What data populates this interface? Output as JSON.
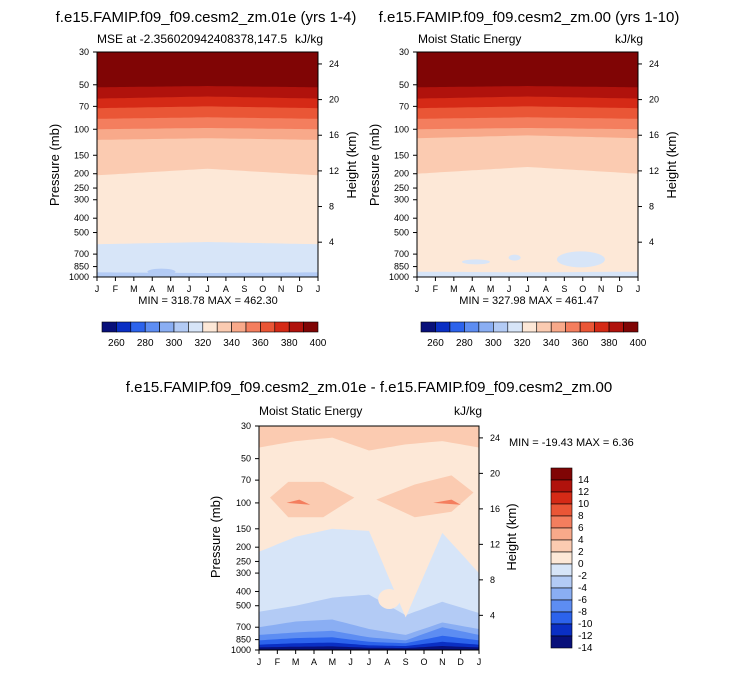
{
  "colors": {
    "diverging": [
      "#08107a",
      "#0a2fc4",
      "#2c63ec",
      "#5d8df2",
      "#8aaef3",
      "#b3cbf5",
      "#d7e5f8",
      "#fde8d7",
      "#fbcbb1",
      "#f8a98a",
      "#f47e5e",
      "#ea5636",
      "#d52a16",
      "#b0120c",
      "#800505"
    ],
    "frame": "#000000"
  },
  "months": [
    "J",
    "F",
    "M",
    "A",
    "M",
    "J",
    "J",
    "A",
    "S",
    "O",
    "N",
    "D",
    "J"
  ],
  "pressure_ticks": [
    30,
    50,
    70,
    100,
    150,
    200,
    250,
    300,
    400,
    500,
    700,
    850,
    1000
  ],
  "height_ticks": [
    4,
    8,
    12,
    16,
    20,
    24
  ],
  "chart_data": [
    {
      "type": "heatmap",
      "id": "p1",
      "title": "f.e15.FAMIP.f09_f09.cesm2_zm.01e (yrs 1-4)",
      "left_string": "MSE at -2.356020942408378,147.5",
      "right_string": "kJ/kg",
      "xlabel": "",
      "ylabel": "Pressure (mb)",
      "y2label": "Height (km)",
      "stats": "MIN = 318.78 MAX = 462.30",
      "x": "month (Jan to Jan)",
      "ylim": [
        1000,
        30
      ],
      "levels": [
        260,
        270,
        280,
        290,
        300,
        310,
        320,
        330,
        340,
        350,
        360,
        370,
        380,
        390,
        400
      ],
      "colorbar_labels": [
        "260",
        "280",
        "300",
        "320",
        "340",
        "360",
        "380",
        "400"
      ],
      "pressure_contours": {
        "t": [
          0,
          6,
          12
        ],
        "boundaries": [
          {
            "value": 400,
            "p": [
              52,
              51,
              52
            ]
          },
          {
            "value": 390,
            "p": [
              62,
              60,
              62
            ]
          },
          {
            "value": 380,
            "p": [
              72,
              70,
              72
            ]
          },
          {
            "value": 370,
            "p": [
              85,
              83,
              85
            ]
          },
          {
            "value": 360,
            "p": [
              100,
              98,
              100
            ]
          },
          {
            "value": 350,
            "p": [
              118,
              115,
              118
            ]
          },
          {
            "value": 340,
            "p": [
              205,
              185,
              205
            ]
          },
          {
            "value": 330,
            "p": [
              600,
              580,
              600
            ]
          },
          {
            "value": 320,
            "p": [
              930,
              940,
              930
            ]
          }
        ]
      }
    },
    {
      "type": "heatmap",
      "id": "p2",
      "title": "f.e15.FAMIP.f09_f09.cesm2_zm.00 (yrs 1-10)",
      "left_string": "Moist Static Energy",
      "right_string": "kJ/kg",
      "ylabel": "Pressure (mb)",
      "y2label": "Height (km)",
      "stats": "MIN = 327.98 MAX = 461.47",
      "ylim": [
        1000,
        30
      ],
      "levels": [
        260,
        270,
        280,
        290,
        300,
        310,
        320,
        330,
        340,
        350,
        360,
        370,
        380,
        390,
        400
      ],
      "colorbar_labels": [
        "260",
        "280",
        "300",
        "320",
        "340",
        "360",
        "380",
        "400"
      ],
      "pressure_contours": {
        "t": [
          0,
          6,
          12
        ],
        "boundaries": [
          {
            "value": 400,
            "p": [
              52,
              51,
              52
            ]
          },
          {
            "value": 390,
            "p": [
              62,
              60,
              62
            ]
          },
          {
            "value": 380,
            "p": [
              72,
              70,
              72
            ]
          },
          {
            "value": 370,
            "p": [
              85,
              83,
              85
            ]
          },
          {
            "value": 360,
            "p": [
              100,
              98,
              100
            ]
          },
          {
            "value": 350,
            "p": [
              115,
              110,
              115
            ]
          },
          {
            "value": 340,
            "p": [
              200,
              180,
              200
            ]
          },
          {
            "value": 330,
            "p": [
              920,
              930,
              920
            ]
          }
        ]
      }
    },
    {
      "type": "heatmap",
      "id": "p3",
      "title": "f.e15.FAMIP.f09_f09.cesm2_zm.01e - f.e15.FAMIP.f09_f09.cesm2_zm.00",
      "left_string": "Moist Static Energy",
      "right_string": "kJ/kg",
      "ylabel": "Pressure (mb)",
      "y2label": "Height (km)",
      "stats": "MIN = -19.43 MAX =   6.36",
      "ylim": [
        1000,
        30
      ],
      "levels": [
        -14,
        -12,
        -10,
        -8,
        -6,
        -4,
        -2,
        0,
        2,
        4,
        6,
        8,
        10,
        12,
        14
      ],
      "colorbar_labels": [
        "14",
        "12",
        "10",
        "8",
        "6",
        "4",
        "2",
        "0",
        "-2",
        "-4",
        "-6",
        "-8",
        "-10",
        "-12",
        "-14"
      ],
      "pressure_contours": {
        "t": [
          0,
          2,
          4,
          6,
          8,
          10,
          12
        ],
        "boundaries": [
          {
            "value": 2,
            "p": [
              42,
              38,
              36,
              44,
              40,
              38,
              42
            ]
          },
          {
            "value": 0,
            "p": [
              215,
              170,
              150,
              155,
              600,
              160,
              300
            ]
          },
          {
            "value": -2,
            "p": [
              550,
              500,
              440,
              420,
              580,
              470,
              560
            ]
          },
          {
            "value": -4,
            "p": [
              700,
              640,
              620,
              720,
              790,
              650,
              720
            ]
          },
          {
            "value": -6,
            "p": [
              790,
              760,
              740,
              820,
              860,
              700,
              790
            ]
          },
          {
            "value": -8,
            "p": [
              860,
              830,
              820,
              880,
              900,
              800,
              860
            ]
          },
          {
            "value": -10,
            "p": [
              920,
              900,
              890,
              930,
              940,
              880,
              920
            ]
          },
          {
            "value": -12,
            "p": [
              960,
              950,
              945,
              965,
              970,
              940,
              960
            ]
          }
        ],
        "blobs": [
          {
            "value": 4,
            "t": [
              0.6,
              1.6,
              3.5,
              5.2,
              3.5,
              1.6
            ],
            "p": [
              92,
              72,
              72,
              92,
              125,
              125
            ],
            "cls": 8
          },
          {
            "value": 6,
            "t": [
              1.5,
              2.2,
              2.8
            ],
            "p": [
              100,
              95,
              103
            ],
            "cls": 10
          },
          {
            "value": 4,
            "t": [
              6.4,
              8.5,
              10.5,
              11.7,
              10.5,
              8.5
            ],
            "p": [
              95,
              75,
              65,
              85,
              115,
              125
            ],
            "cls": 8
          },
          {
            "value": 6,
            "t": [
              9.5,
              10.5,
              11
            ],
            "p": [
              100,
              95,
              103
            ],
            "cls": 10
          }
        ]
      }
    }
  ]
}
